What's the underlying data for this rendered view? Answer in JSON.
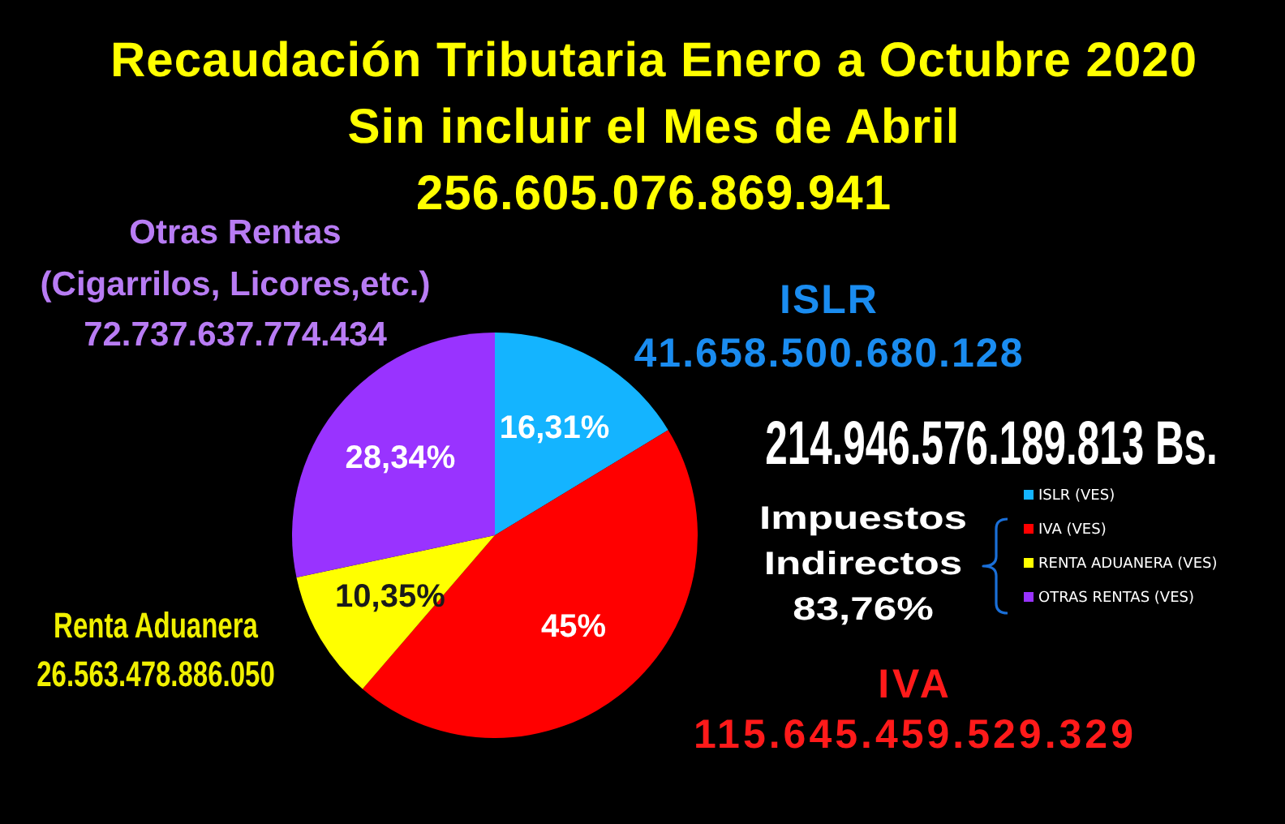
{
  "chart_data": {
    "type": "pie",
    "title": "Recaudación Tributaria Enero a Octubre 2020",
    "subtitle": "Sin incluir el Mes de Abril\n256.605.076.869.941",
    "categories": [
      "ISLR (VES)",
      "IVA (VES)",
      "RENTA ADUANERA (VES)",
      "OTRAS RENTAS (VES)"
    ],
    "values": [
      16.31,
      45,
      10.35,
      28.34
    ],
    "colors": [
      "#14b4ff",
      "#ff0000",
      "#ffff00",
      "#9933ff"
    ],
    "value_labels": [
      "16,31%",
      "45%",
      "10,35%",
      "28,34%"
    ],
    "legend": "right",
    "annotations": [
      "Otras Rentas\n(Cigarrilos, Licores,etc.)\n72.737.637.774.434",
      "ISLR\n41.658.500.680.128",
      "214.946.576.189.813 Bs.",
      "Impuestos\nIndirectos\n83,76%",
      "Renta Aduanera\n26.563.478.886.050",
      "IVA\n115.645.459.529.329"
    ]
  }
}
